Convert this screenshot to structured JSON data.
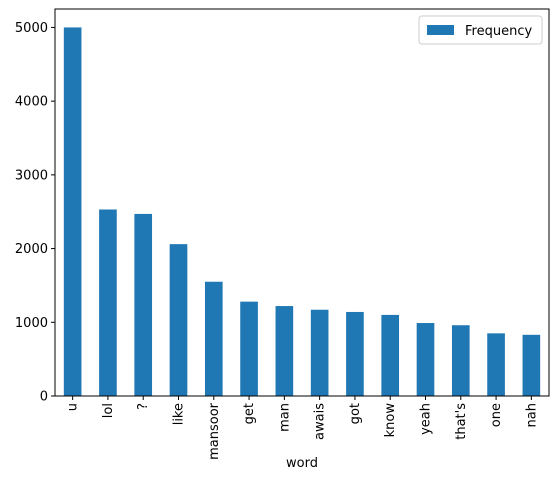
{
  "chart_data": {
    "type": "bar",
    "xlabel": "word",
    "ylabel": "",
    "categories": [
      "u",
      "lol",
      "?",
      "like",
      "mansoor",
      "get",
      "man",
      "awais",
      "got",
      "know",
      "yeah",
      "that's",
      "one",
      "nah"
    ],
    "series": [
      {
        "name": "Frequency",
        "color": "#1f77b4",
        "values": [
          5000,
          2530,
          2470,
          2060,
          1550,
          1280,
          1220,
          1170,
          1140,
          1100,
          990,
          960,
          850,
          830
        ]
      }
    ],
    "ylim": [
      0,
      5250
    ],
    "yticks": [
      "0",
      "1000",
      "2000",
      "3000",
      "4000",
      "5000"
    ],
    "legend_position": "top-right",
    "grid": false
  }
}
